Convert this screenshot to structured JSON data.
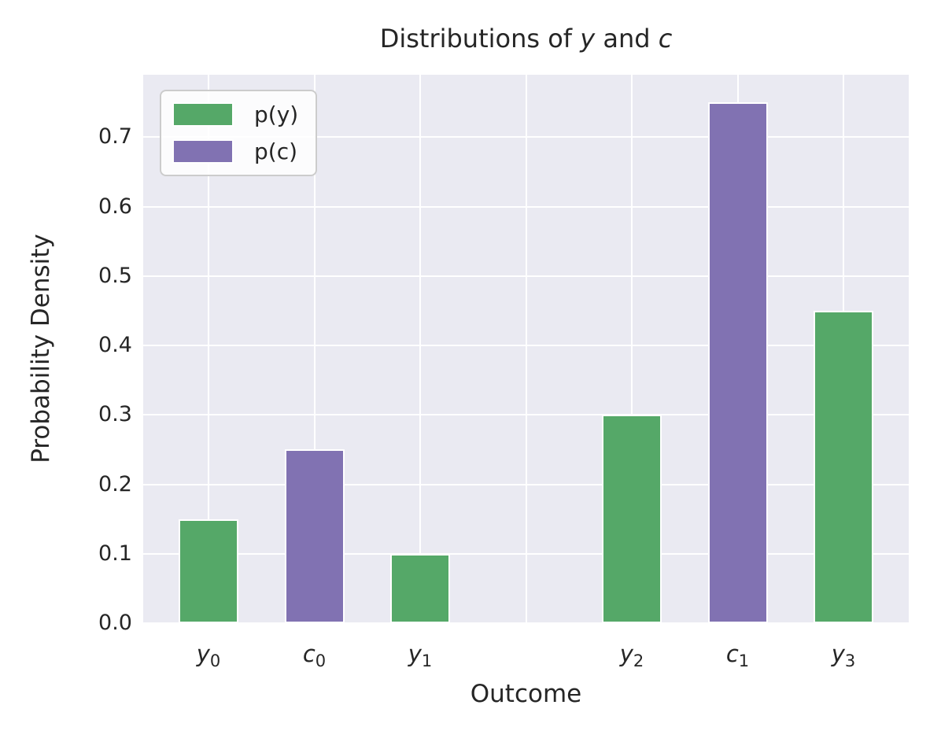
{
  "chart_data": {
    "type": "bar",
    "title": "Distributions of y and c",
    "title_parts": [
      {
        "text": "Distributions of ",
        "italic": false
      },
      {
        "text": "y",
        "italic": true
      },
      {
        "text": " and ",
        "italic": false
      },
      {
        "text": "c",
        "italic": true
      }
    ],
    "xlabel": "Outcome",
    "ylabel": "Probability Density",
    "ylim": [
      0,
      0.79
    ],
    "yticks": [
      "0.0",
      "0.1",
      "0.2",
      "0.3",
      "0.4",
      "0.5",
      "0.6",
      "0.7"
    ],
    "slots": 7,
    "grid": true,
    "legend_position": "upper left",
    "plot_background": "#eaeaf2",
    "gridline_color": "#ffffff",
    "text_color": "#262626",
    "series": [
      {
        "name": "p(y)",
        "color": "#55a868"
      },
      {
        "name": "p(c)",
        "color": "#8172b2"
      }
    ],
    "bars": [
      {
        "base": "y",
        "sub": "0",
        "series": "p(y)",
        "slot": 0,
        "value": 0.15
      },
      {
        "base": "c",
        "sub": "0",
        "series": "p(c)",
        "slot": 1,
        "value": 0.25
      },
      {
        "base": "y",
        "sub": "1",
        "series": "p(y)",
        "slot": 2,
        "value": 0.1
      },
      {
        "base": "y",
        "sub": "2",
        "series": "p(y)",
        "slot": 4,
        "value": 0.3
      },
      {
        "base": "c",
        "sub": "1",
        "series": "p(c)",
        "slot": 5,
        "value": 0.75
      },
      {
        "base": "y",
        "sub": "3",
        "series": "p(y)",
        "slot": 6,
        "value": 0.45
      }
    ]
  }
}
